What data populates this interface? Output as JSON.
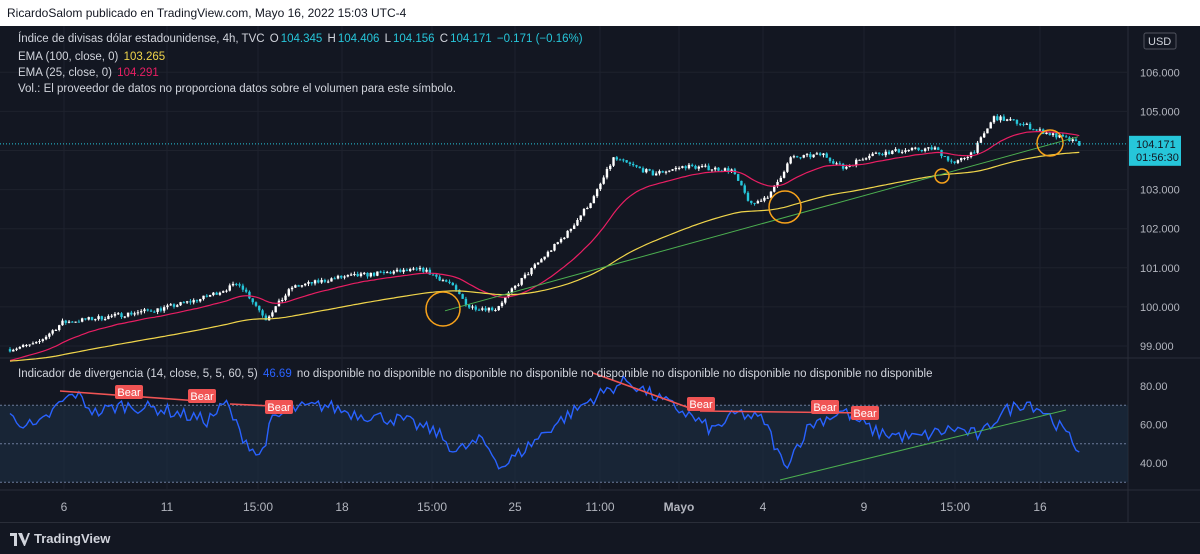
{
  "header": {
    "publish_line": "RicardoSalom publicado en TradingView.com, Mayo 16, 2022 15:03 UTC-4"
  },
  "legend": {
    "symbol": "Índice de divisas dólar estadounidense, 4h, TVC",
    "o_label": "O",
    "o_value": "104.345",
    "h_label": "H",
    "h_value": "104.406",
    "l_label": "L",
    "l_value": "104.156",
    "c_label": "C",
    "c_value": "104.171",
    "change": "−0.171 (−0.16%)",
    "ema100_label": "EMA (100, close, 0)",
    "ema100_value": "103.265",
    "ema25_label": "EMA (25, close, 0)",
    "ema25_value": "104.291",
    "vol_note": "Vol.: El proveedor de datos no proporciona datos sobre el volumen para este símbolo.",
    "indicator_label": "Indicador de divergencia (14, close, 5, 5, 60, 5)",
    "indicator_value": "46.69",
    "indicator_na": "no disponible  no disponible  no disponible  no disponible  no disponible  no disponible  no disponible  no disponible  no disponible"
  },
  "footer": {
    "brand": "TradingView"
  },
  "colors": {
    "bg": "#131722",
    "up": "#ffffff",
    "down": "#26c6da",
    "ema100": "#f0d54b",
    "ema25": "#e91e63",
    "trend": "#4caf50",
    "osc": "#2962ff",
    "bear": "#f05454",
    "circle": "#f7a21b"
  },
  "chart_data": [
    {
      "type": "candlestick",
      "y_axis": {
        "ticks": [
          99.0,
          100.0,
          101.0,
          102.0,
          103.0,
          104.0,
          105.0,
          106.0
        ],
        "tick_labels": [
          "99.000",
          "100.000",
          "101.000",
          "102.000",
          "103.000",
          "104.000",
          "105.000",
          "106.000"
        ],
        "range": [
          98.7,
          107.0
        ],
        "currency": "USD"
      },
      "x_axis": {
        "tick_labels": [
          "6",
          "11",
          "15:00",
          "18",
          "15:00",
          "25",
          "11:00",
          "Mayo",
          "4",
          "9",
          "15:00",
          "16"
        ]
      },
      "last_price": {
        "label": "104.171",
        "countdown": "01:56:30"
      },
      "ema100_endpoint": 103.27,
      "ema25_endpoint": 104.29,
      "trend_from": 99.9,
      "trend_to": 104.35,
      "anchors": [
        [
          0,
          98.92
        ],
        [
          8,
          99.05
        ],
        [
          16,
          99.6
        ],
        [
          30,
          99.75
        ],
        [
          46,
          99.95
        ],
        [
          58,
          100.2
        ],
        [
          70,
          100.6
        ],
        [
          78,
          99.7
        ],
        [
          86,
          100.5
        ],
        [
          100,
          100.75
        ],
        [
          118,
          100.9
        ],
        [
          126,
          100.95
        ],
        [
          134,
          100.6
        ],
        [
          140,
          100.0
        ],
        [
          148,
          99.95
        ],
        [
          156,
          100.7
        ],
        [
          170,
          101.9
        ],
        [
          178,
          102.8
        ],
        [
          184,
          103.8
        ],
        [
          190,
          103.6
        ],
        [
          196,
          103.4
        ],
        [
          206,
          103.6
        ],
        [
          220,
          103.5
        ],
        [
          226,
          102.6
        ],
        [
          232,
          102.9
        ],
        [
          238,
          103.8
        ],
        [
          248,
          103.9
        ],
        [
          254,
          103.55
        ],
        [
          262,
          103.9
        ],
        [
          272,
          104.0
        ],
        [
          282,
          104.05
        ],
        [
          288,
          103.65
        ],
        [
          294,
          104.0
        ],
        [
          300,
          104.85
        ],
        [
          308,
          104.7
        ],
        [
          314,
          104.5
        ],
        [
          320,
          104.35
        ],
        [
          326,
          104.17
        ]
      ]
    },
    {
      "type": "line",
      "name": "Indicador de divergencia",
      "y_axis": {
        "ticks": [
          40.0,
          60.0,
          80.0
        ],
        "tick_labels": [
          "40.00",
          "60.00",
          "80.00"
        ],
        "range": [
          28,
          86
        ]
      },
      "levels": [
        70,
        50,
        30
      ],
      "labels": [
        "Bear",
        "Bear",
        "Bear",
        "Bear",
        "Bear",
        "Bear"
      ],
      "anchors": [
        [
          0,
          64
        ],
        [
          8,
          58
        ],
        [
          16,
          72
        ],
        [
          20,
          76
        ],
        [
          26,
          66
        ],
        [
          34,
          70
        ],
        [
          46,
          68
        ],
        [
          60,
          62
        ],
        [
          66,
          71
        ],
        [
          70,
          56
        ],
        [
          76,
          43
        ],
        [
          80,
          62
        ],
        [
          86,
          68
        ],
        [
          96,
          70
        ],
        [
          104,
          66
        ],
        [
          120,
          62
        ],
        [
          130,
          56
        ],
        [
          136,
          46
        ],
        [
          144,
          52
        ],
        [
          150,
          38
        ],
        [
          156,
          46
        ],
        [
          166,
          60
        ],
        [
          178,
          74
        ],
        [
          188,
          83
        ],
        [
          196,
          75
        ],
        [
          206,
          66
        ],
        [
          214,
          57
        ],
        [
          222,
          66
        ],
        [
          230,
          62
        ],
        [
          236,
          38
        ],
        [
          244,
          60
        ],
        [
          254,
          67
        ],
        [
          264,
          56
        ],
        [
          276,
          53
        ],
        [
          288,
          58
        ],
        [
          296,
          54
        ],
        [
          302,
          66
        ],
        [
          310,
          72
        ],
        [
          316,
          66
        ],
        [
          322,
          55
        ],
        [
          326,
          46.7
        ]
      ]
    }
  ]
}
